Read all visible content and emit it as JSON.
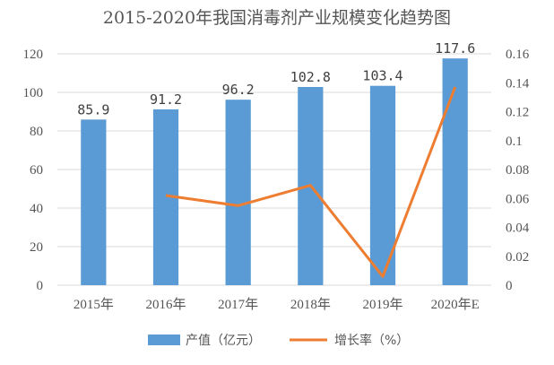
{
  "chart_data": {
    "type": "bar",
    "title": "2015-2020年我国消毒剂产业规模变化趋势图",
    "categories": [
      "2015年",
      "2016年",
      "2017年",
      "2018年",
      "2019年",
      "2020年E"
    ],
    "series": [
      {
        "name": "产值（亿元）",
        "type": "bar",
        "axis": "left",
        "values": [
          85.9,
          91.2,
          96.2,
          102.8,
          103.4,
          117.6
        ],
        "data_labels": [
          "85.9",
          "91.2",
          "96.2",
          "102.8",
          "103.4",
          "117.6"
        ]
      },
      {
        "name": "增长率（%）",
        "type": "line",
        "axis": "right",
        "values": [
          null,
          0.062,
          0.055,
          0.069,
          0.006,
          0.137
        ]
      }
    ],
    "y_left": {
      "min": 0,
      "max": 120,
      "step": 20,
      "ticks": [
        "0",
        "20",
        "40",
        "60",
        "80",
        "100",
        "120"
      ]
    },
    "y_right": {
      "min": 0,
      "max": 0.16,
      "step": 0.02,
      "ticks": [
        "0",
        "0.02",
        "0.04",
        "0.06",
        "0.08",
        "0.1",
        "0.12",
        "0.14",
        "0.16"
      ]
    },
    "grid": true,
    "legend": "bottom",
    "colors": {
      "bar": "#5b9bd5",
      "line": "#ed7d31",
      "grid": "#d9d9d9",
      "text": "#555555"
    }
  }
}
